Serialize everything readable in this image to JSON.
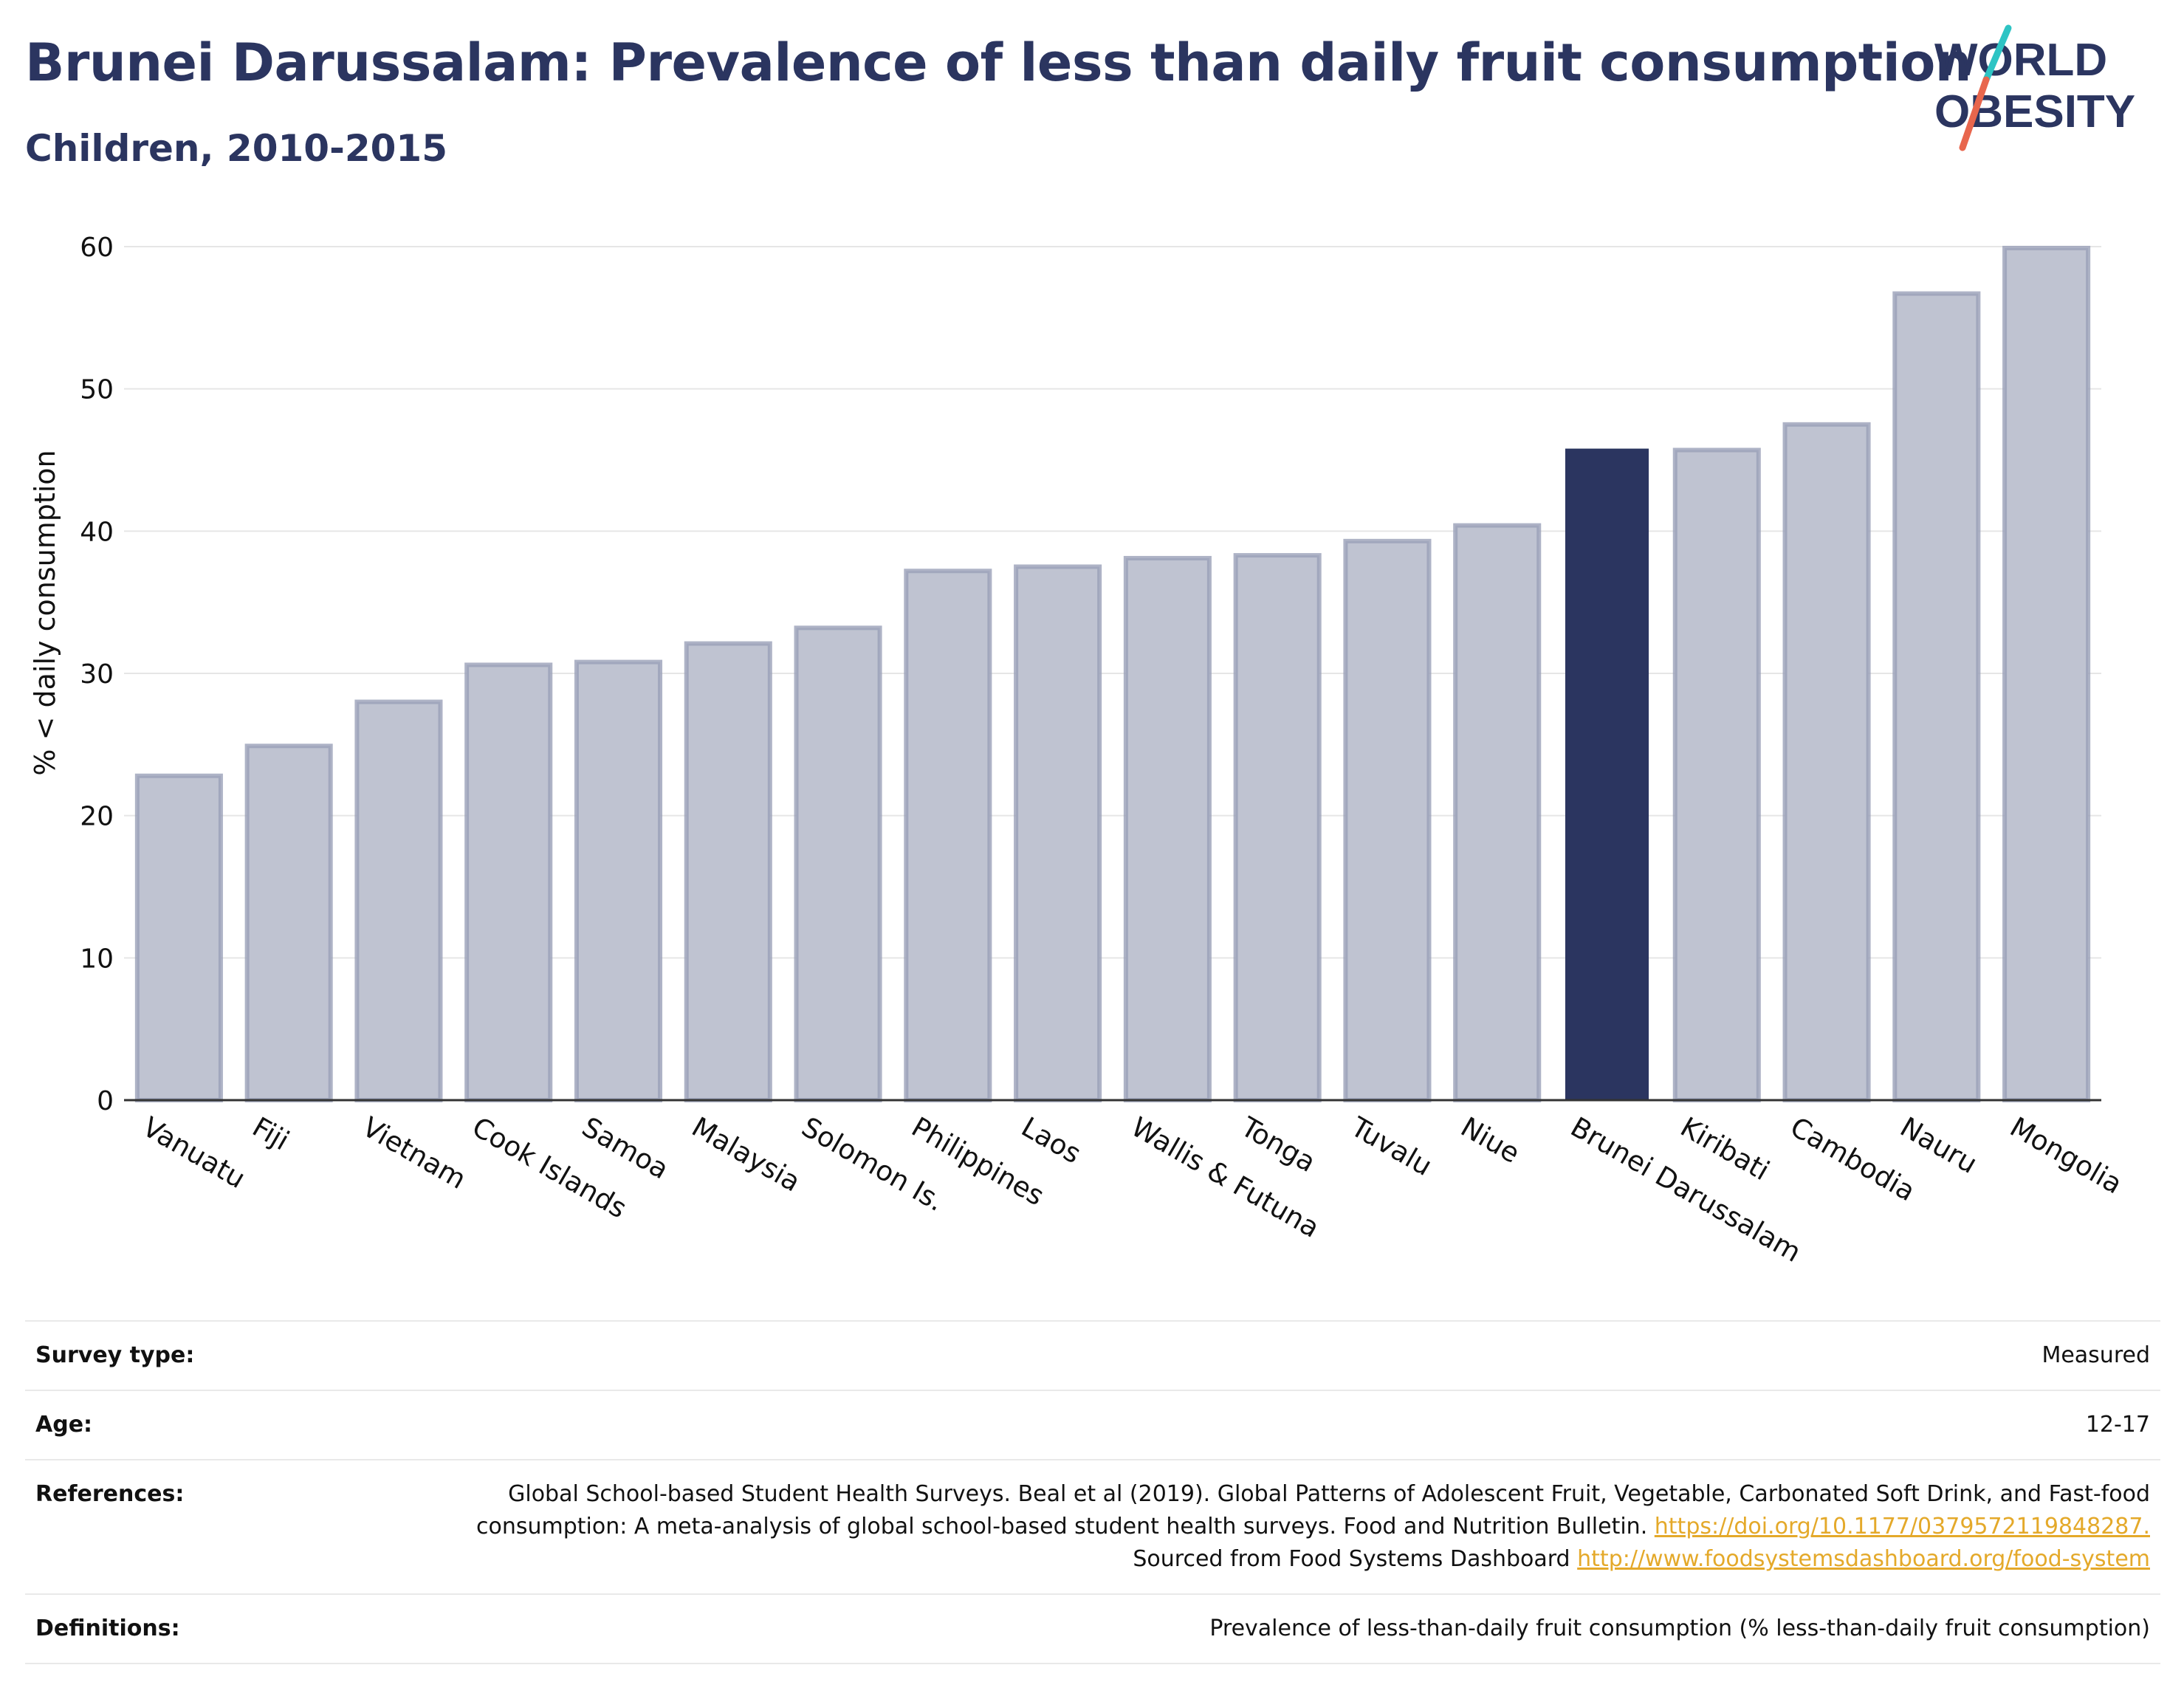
{
  "header": {
    "title": "Brunei Darussalam: Prevalence of less than daily fruit consumption",
    "subtitle": "Children, 2010-2015"
  },
  "logo": {
    "line1": "WORLD",
    "line2": "OBESITY",
    "slash_colors": [
      "#2ec4c4",
      "#e8664d"
    ]
  },
  "colors": {
    "bar": "#bfc3d1",
    "bar_border": "#9aa0b8",
    "highlight": "#2b3560",
    "grid": "#e6e6e6",
    "axis": "#333333",
    "link": "#e4a92a"
  },
  "chart_data": {
    "type": "bar",
    "title": "Brunei Darussalam: Prevalence of less than daily fruit consumption",
    "subtitle": "Children, 2010-2015",
    "xlabel": "",
    "ylabel": "% < daily consumption",
    "ylim": [
      0,
      60
    ],
    "yticks": [
      0,
      10,
      20,
      30,
      40,
      50,
      60
    ],
    "grid": true,
    "highlight": "Brunei Darussalam",
    "categories": [
      "Vanuatu",
      "Fiji",
      "Vietnam",
      "Cook Islands",
      "Samoa",
      "Malaysia",
      "Solomon Is.",
      "Philippines",
      "Laos",
      "Wallis & Futuna",
      "Tonga",
      "Tuvalu",
      "Niue",
      "Brunei Darussalam",
      "Kiribati",
      "Cambodia",
      "Nauru",
      "Mongolia"
    ],
    "values": [
      22.8,
      24.9,
      28.0,
      30.6,
      30.8,
      32.1,
      33.2,
      37.2,
      37.5,
      38.1,
      38.3,
      39.3,
      40.4,
      45.8,
      45.7,
      47.5,
      56.7,
      59.9
    ]
  },
  "meta": {
    "survey_type_label": "Survey type:",
    "survey_type_value": "Measured",
    "age_label": "Age:",
    "age_value": "12-17",
    "references_label": "References:",
    "references_text_1": "Global School-based Student Health Surveys. Beal et al (2019). Global Patterns of Adolescent Fruit, Vegetable, Carbonated Soft Drink, and Fast-food consumption: A meta-analysis of global school-based student health surveys. Food and Nutrition Bulletin.",
    "references_link_1": "https://doi.org/10.1177/0379572119848287.",
    "references_text_2": "Sourced from Food Systems Dashboard",
    "references_link_2": "http://www.foodsystemsdashboard.org/food-system",
    "definitions_label": "Definitions:",
    "definitions_value": "Prevalence of less-than-daily fruit consumption (% less-than-daily fruit consumption)"
  }
}
